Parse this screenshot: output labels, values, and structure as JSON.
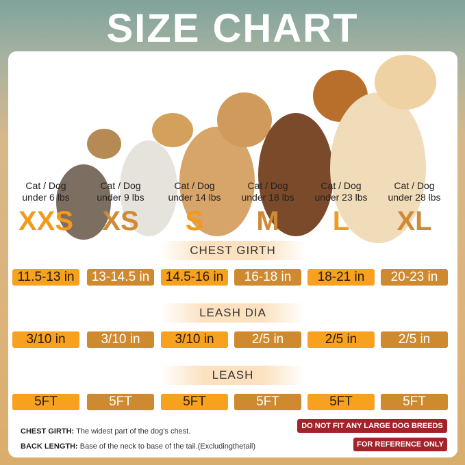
{
  "title": "SIZE CHART",
  "colors": {
    "light_orange": "#f7a11f",
    "dark_orange": "#cf8a30",
    "warning_red": "#a3232a"
  },
  "sizes": [
    {
      "label": "XXS",
      "weight": "Cat / Dog under 6 lbs",
      "chest": "11.5-13 in",
      "dia": "3/10 in",
      "leash": "5FT"
    },
    {
      "label": "XS",
      "weight": "Cat / Dog under 9 lbs",
      "chest": "13-14.5 in",
      "dia": "3/10 in",
      "leash": "5FT"
    },
    {
      "label": "S",
      "weight": "Cat / Dog under 14 lbs",
      "chest": "14.5-16 in",
      "dia": "3/10 in",
      "leash": "5FT"
    },
    {
      "label": "M",
      "weight": "Cat / Dog under 18 lbs",
      "chest": "16-18 in",
      "dia": "2/5 in",
      "leash": "5FT"
    },
    {
      "label": "L",
      "weight": "Cat / Dog under 23 lbs",
      "chest": "18-21 in",
      "dia": "2/5 in",
      "leash": "5FT"
    },
    {
      "label": "XL",
      "weight": "Cat / Dog under 28 lbs",
      "chest": "20-23 in",
      "dia": "2/5 in",
      "leash": "5FT"
    }
  ],
  "headers": {
    "chest": "CHEST GIRTH",
    "dia": "LEASH DIA",
    "leash": "LEASH"
  },
  "notes": {
    "chest_label": "CHEST GIRTH:",
    "chest_text": "The widest part of the dog's chest.",
    "back_label": "BACK LENGTH:",
    "back_text": "Base of the neck to base of the tail.(Excludingthetail)"
  },
  "warnings": [
    "DO NOT FIT ANY LARGE DOG BREEDS",
    "FOR REFERENCE ONLY"
  ]
}
